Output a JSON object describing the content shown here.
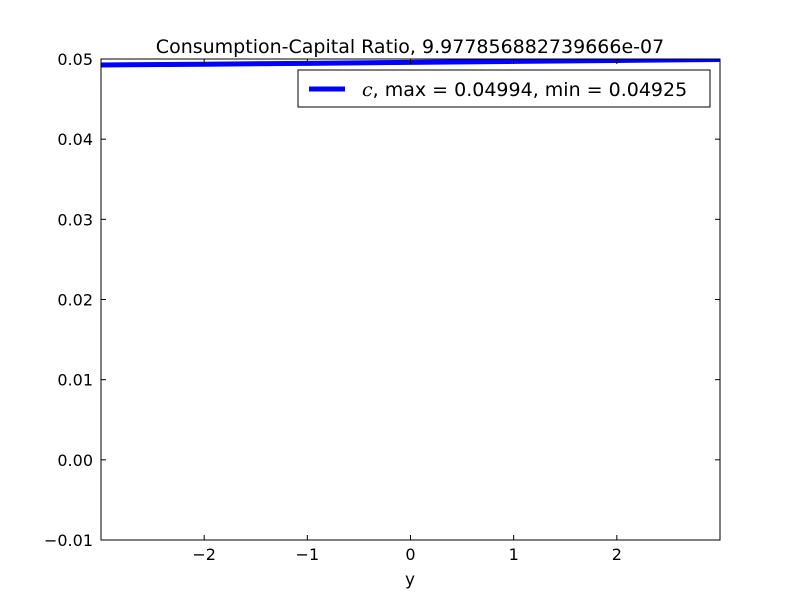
{
  "chart_data": {
    "type": "line",
    "title": "Consumption-Capital Ratio, 9.977856882739666e-07",
    "xlabel": "y",
    "ylabel": "",
    "xlim": [
      -3.0,
      3.0
    ],
    "ylim": [
      -0.01,
      0.05
    ],
    "x_ticks": [
      -2,
      -1,
      0,
      1,
      2
    ],
    "x_tick_labels": [
      "−2",
      "−1",
      "0",
      "1",
      "2"
    ],
    "y_ticks": [
      -0.01,
      0.0,
      0.01,
      0.02,
      0.03,
      0.04,
      0.05
    ],
    "y_tick_labels": [
      "−0.01",
      "0.00",
      "0.01",
      "0.02",
      "0.03",
      "0.04",
      "0.05"
    ],
    "grid": false,
    "legend_position": "top-right",
    "series": [
      {
        "name": "c",
        "legend_label": "c, max = 0.04994, min = 0.04925",
        "legend_symbol": "c",
        "legend_text": ", max = 0.04994, min = 0.04925",
        "color": "#0000ff",
        "x": [
          -3.0,
          -2.0,
          -1.0,
          0.0,
          1.0,
          2.0,
          3.0
        ],
        "y": [
          0.04925,
          0.04935,
          0.04946,
          0.04958,
          0.0497,
          0.04982,
          0.04994
        ]
      }
    ]
  }
}
